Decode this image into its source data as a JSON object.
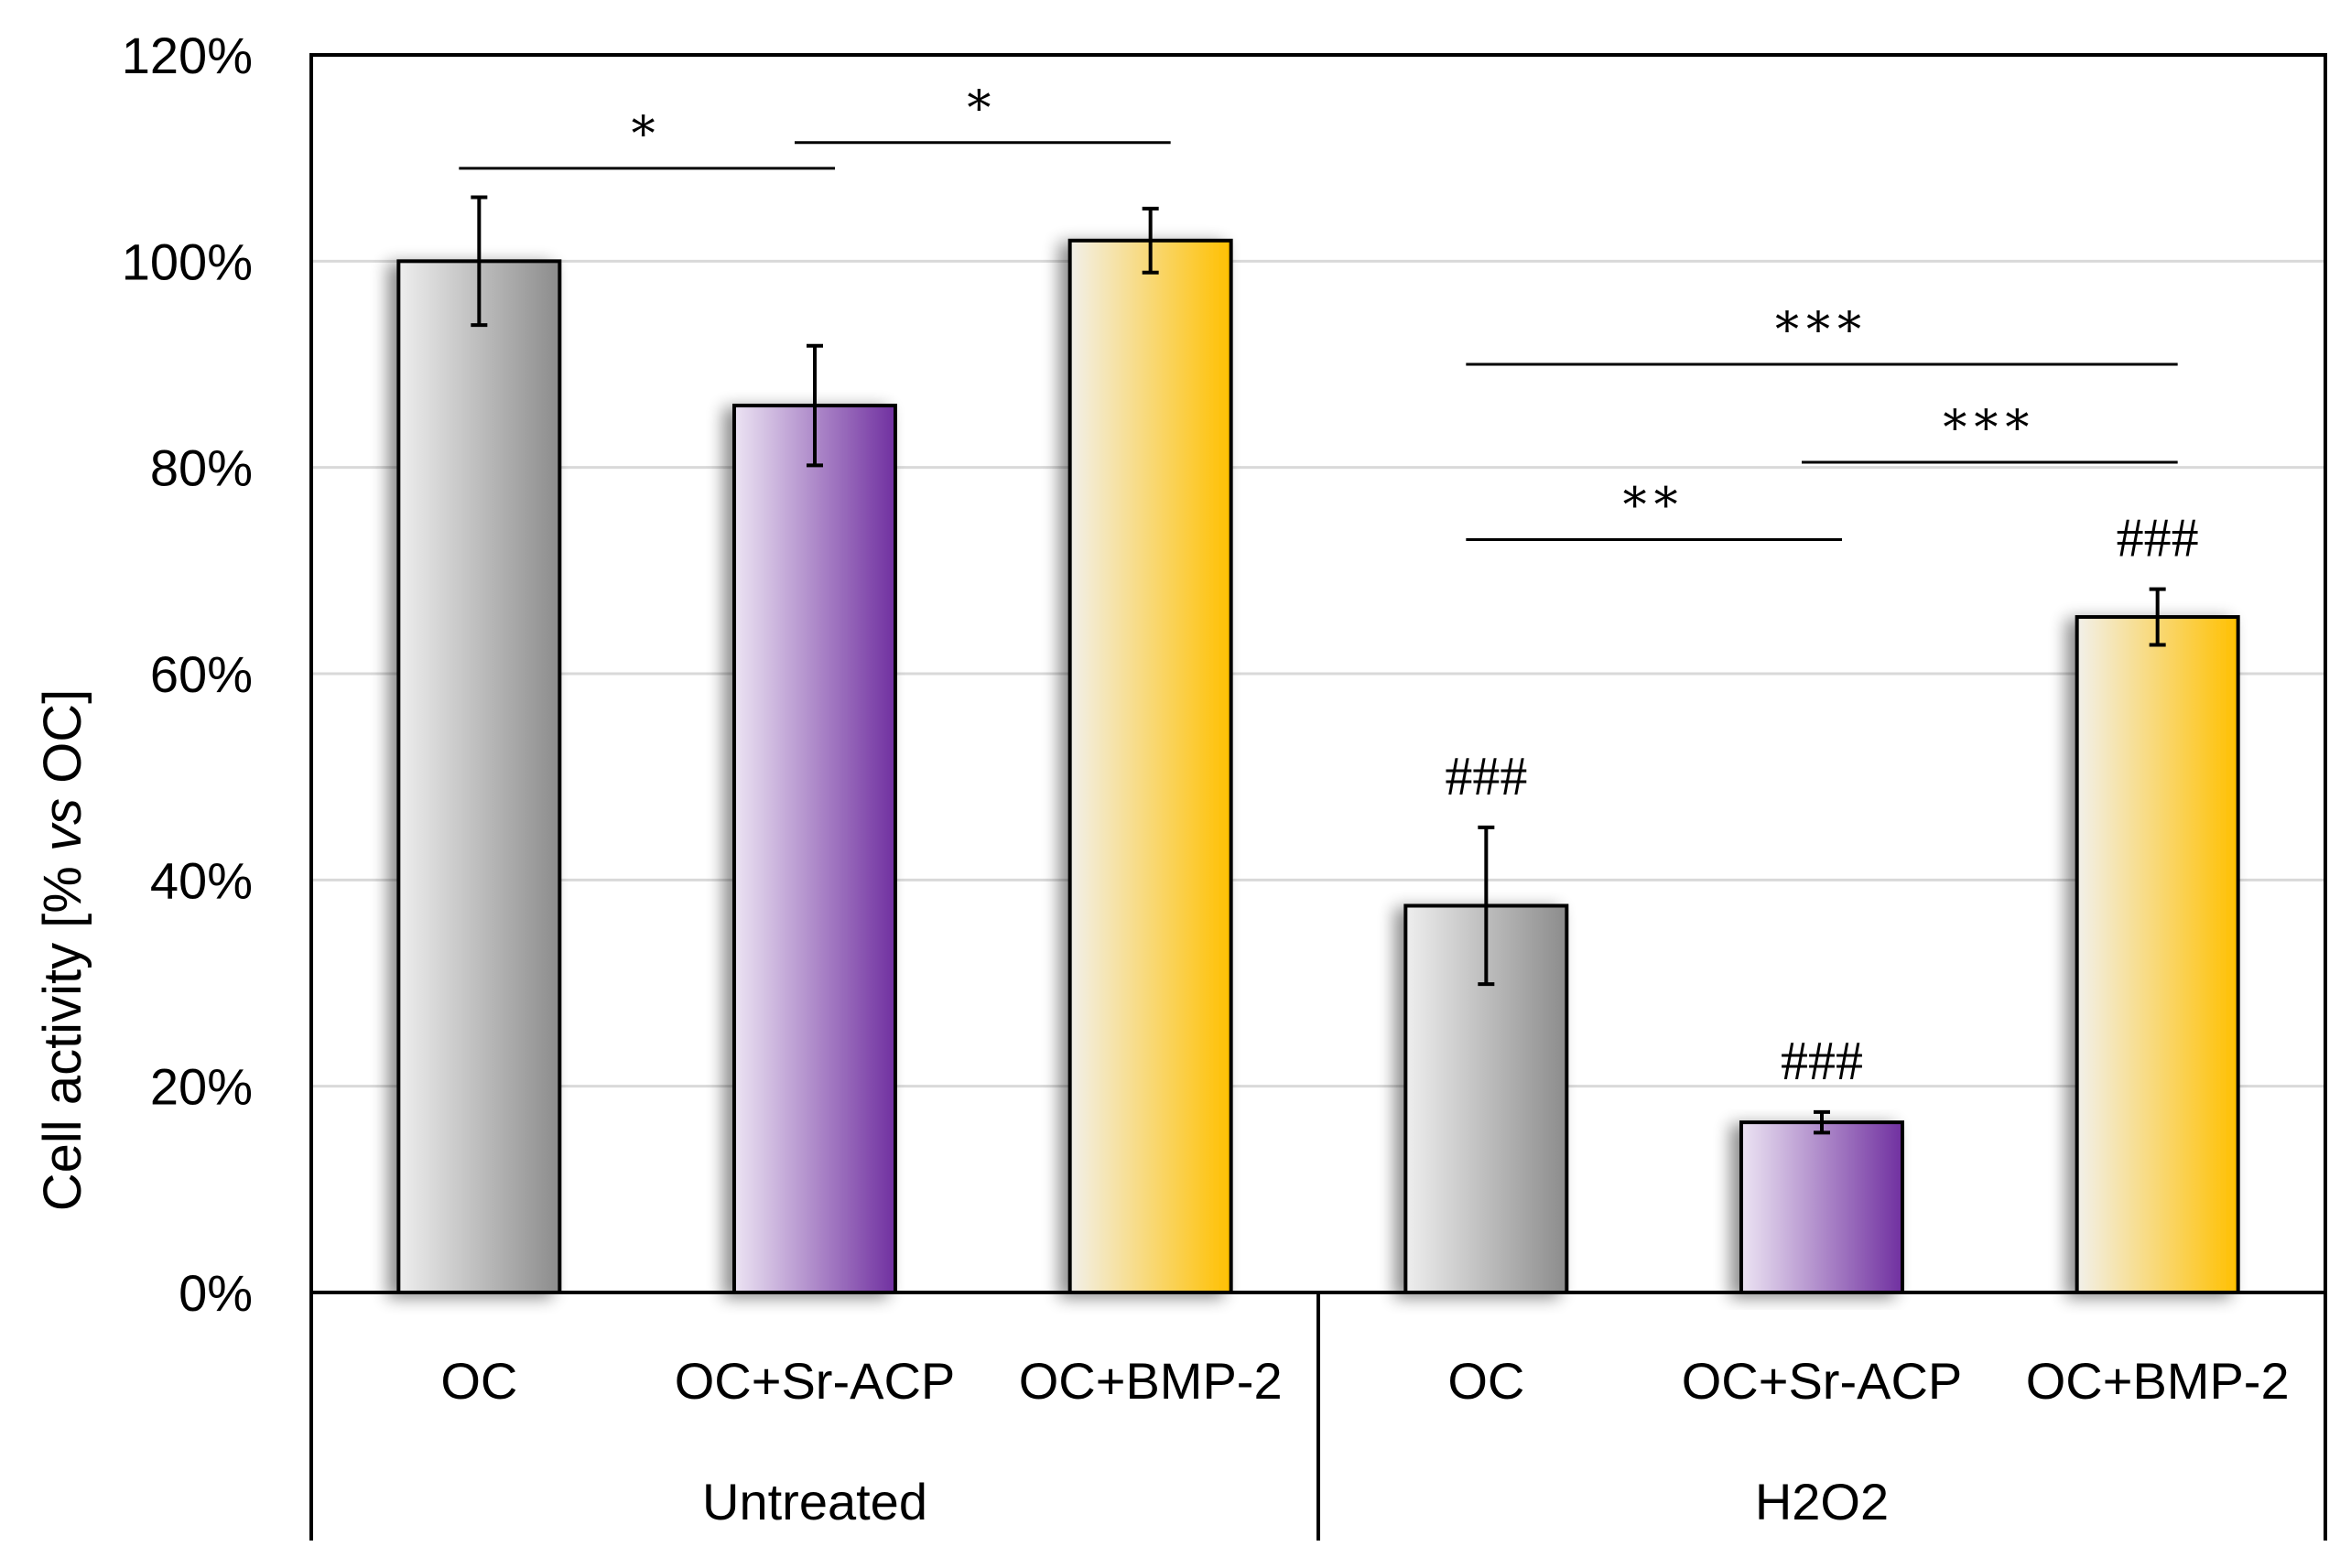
{
  "colors": {
    "gray_light": "#eeeeee",
    "gray_dark": "#8c8c8c",
    "purple_light": "#ece4f3",
    "purple_dark": "#7030a0",
    "yellow_light": "#f2f0ea",
    "yellow_dark": "#ffc000",
    "grid": "#d9d9d9",
    "axis": "#000000"
  },
  "chart_data": {
    "type": "bar",
    "title": "",
    "ylabel": "Cell activity [% vs OC]",
    "ylabel_parts": [
      "Cell activity [% ",
      "vs",
      " OC]"
    ],
    "xlabel": "",
    "ylim": [
      0,
      120
    ],
    "yticks": [
      0,
      20,
      40,
      60,
      80,
      100,
      120
    ],
    "ytick_labels": [
      "0%",
      "20%",
      "40%",
      "60%",
      "80%",
      "100%",
      "120%"
    ],
    "grid": true,
    "groups": [
      {
        "name": "Untreated",
        "categories": [
          "OC",
          "OC+Sr-ACP",
          "OC+BMP-2"
        ]
      },
      {
        "name": "H2O2",
        "categories": [
          "OC",
          "OC+Sr-ACP",
          "OC+BMP-2"
        ]
      }
    ],
    "bars": [
      {
        "group": "Untreated",
        "category": "OC",
        "value": 100,
        "error": 6.2,
        "scheme": "gray",
        "annotation": ""
      },
      {
        "group": "Untreated",
        "category": "OC+Sr-ACP",
        "value": 86,
        "error": 5.8,
        "scheme": "purple",
        "annotation": ""
      },
      {
        "group": "Untreated",
        "category": "OC+BMP-2",
        "value": 102,
        "error": 3.1,
        "scheme": "yellow",
        "annotation": ""
      },
      {
        "group": "H2O2",
        "category": "OC",
        "value": 37.5,
        "error": 7.6,
        "scheme": "gray",
        "annotation": "###"
      },
      {
        "group": "H2O2",
        "category": "OC+Sr-ACP",
        "value": 16.5,
        "error": 1.0,
        "scheme": "purple",
        "annotation": "###"
      },
      {
        "group": "H2O2",
        "category": "OC+BMP-2",
        "value": 65.5,
        "error": 2.7,
        "scheme": "yellow",
        "annotation": "###"
      }
    ],
    "significance": [
      {
        "from": 0,
        "to": 1,
        "level": 109,
        "label": "*"
      },
      {
        "from": 1,
        "to": 2,
        "level": 111.5,
        "label": "*"
      },
      {
        "from": 3,
        "to": 5,
        "level": 90,
        "label": "***"
      },
      {
        "from": 4,
        "to": 5,
        "level": 80.5,
        "label": "***"
      },
      {
        "from": 3,
        "to": 4,
        "level": 73,
        "label": "**"
      }
    ]
  }
}
